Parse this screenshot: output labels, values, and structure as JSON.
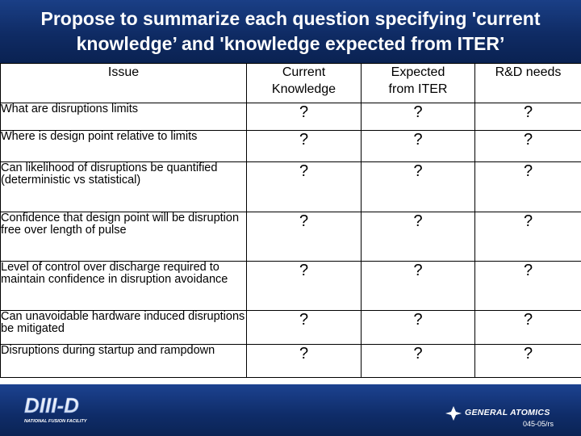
{
  "slide": {
    "title_line1": "Propose to summarize each question specifying 'current",
    "title_line2": "knowledge’ and 'knowledge expected from ITER’"
  },
  "table": {
    "headers": [
      "Issue",
      "Current\nKnowledge",
      "Expected\nfrom ITER",
      "R&D needs"
    ],
    "header_current_l1": "Current",
    "header_current_l2": "Knowledge",
    "header_expected_l1": "Expected",
    "header_expected_l2": "from ITER",
    "rows": [
      {
        "issue": "What are disruptions limits",
        "current": "?",
        "expected": "?",
        "rd": "?"
      },
      {
        "issue": "Where is design point relative to limits",
        "current": "?",
        "expected": "?",
        "rd": "?"
      },
      {
        "issue": "Can likelihood of disruptions be quantified (deterministic vs statistical)",
        "current": "?",
        "expected": "?",
        "rd": "?"
      },
      {
        "issue": "Confidence that design point will be disruption free over length of pulse",
        "current": "?",
        "expected": "?",
        "rd": "?"
      },
      {
        "issue": "Level of control over discharge required to maintain confidence in disruption avoidance",
        "current": "?",
        "expected": "?",
        "rd": "?"
      },
      {
        "issue": "Can unavoidable hardware induced disruptions be mitigated",
        "current": "?",
        "expected": "?",
        "rd": "?"
      },
      {
        "issue": "Disruptions during startup and rampdown",
        "current": "?",
        "expected": "?",
        "rd": "?"
      }
    ]
  },
  "footer": {
    "left_logo_text": "DIII-D",
    "left_logo_subtext": "NATIONAL FUSION FACILITY",
    "right_logo_text": "GENERAL ATOMICS",
    "doc_code": "045-05/rs"
  },
  "colors": {
    "title_bar": "#0f2b64",
    "footer_bar": "#0f2c68",
    "title_text": "#ffffff",
    "table_text": "#000000"
  }
}
